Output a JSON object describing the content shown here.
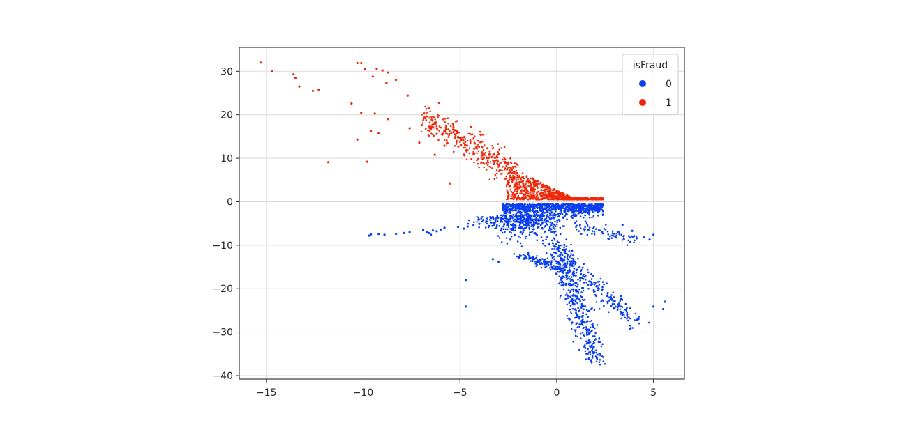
{
  "chart_data": {
    "type": "scatter",
    "title": "",
    "xlabel": "",
    "ylabel": "",
    "xlim": [
      -16.4,
      6.6
    ],
    "ylim": [
      -40.8,
      35.5
    ],
    "xticks": [
      -15,
      -10,
      -5,
      0,
      5
    ],
    "yticks": [
      -40,
      -30,
      -20,
      -10,
      0,
      10,
      20,
      30
    ],
    "grid": true,
    "legend": {
      "title": "isFraud",
      "position": "top-right",
      "entries": [
        {
          "label": "0",
          "color": "#0a3ff0"
        },
        {
          "label": "1",
          "color": "#f0280a"
        }
      ]
    },
    "series": [
      {
        "name": "0",
        "color": "#0a3ff0",
        "points": [
          [
            -9.7,
            -7.8
          ],
          [
            -9.6,
            -7.5
          ],
          [
            -9.2,
            -7.4
          ],
          [
            -8.9,
            -7.6
          ],
          [
            -8.3,
            -7.4
          ],
          [
            -7.9,
            -7.2
          ],
          [
            -7.6,
            -7.0
          ],
          [
            -6.9,
            -6.5
          ],
          [
            -6.7,
            -6.9
          ],
          [
            -6.6,
            -7.2
          ],
          [
            -6.5,
            -7.6
          ],
          [
            -6.4,
            -6.6
          ],
          [
            -6.2,
            -6.8
          ],
          [
            -6.0,
            -6.4
          ],
          [
            -5.8,
            -6.0
          ],
          [
            -5.1,
            -5.8
          ],
          [
            -4.8,
            -6.2
          ],
          [
            -4.6,
            -5.7
          ],
          [
            -4.3,
            -5.4
          ],
          [
            -4.0,
            -5.1
          ],
          [
            -3.8,
            -4.2
          ],
          [
            -3.5,
            -5.6
          ],
          [
            -3.2,
            -4.8
          ],
          [
            -2.9,
            -3.9
          ],
          [
            -3.3,
            -13.2
          ],
          [
            -3.0,
            -13.8
          ],
          [
            -4.7,
            -18.0
          ],
          [
            -4.7,
            -24.1
          ],
          [
            4.0,
            -7.9
          ],
          [
            4.5,
            -8.2
          ],
          [
            4.8,
            -8.7
          ],
          [
            5.0,
            -7.6
          ],
          [
            3.9,
            -6.7
          ],
          [
            3.4,
            -5.3
          ],
          [
            3.8,
            -29.3
          ],
          [
            5.0,
            -24.1
          ],
          [
            5.5,
            -24.7
          ],
          [
            5.6,
            -23.0
          ]
        ]
      },
      {
        "name": "1",
        "color": "#f0280a",
        "points": [
          [
            -15.3,
            32.0
          ],
          [
            -14.7,
            30.1
          ],
          [
            -13.6,
            29.3
          ],
          [
            -13.5,
            28.5
          ],
          [
            -13.3,
            26.5
          ],
          [
            -12.6,
            25.5
          ],
          [
            -12.3,
            25.8
          ],
          [
            -11.8,
            9.1
          ],
          [
            -10.3,
            31.9
          ],
          [
            -10.1,
            31.9
          ],
          [
            -9.9,
            30.5
          ],
          [
            -9.5,
            28.8
          ],
          [
            -9.3,
            30.6
          ],
          [
            -9.0,
            30.2
          ],
          [
            -8.8,
            27.3
          ],
          [
            -8.7,
            29.7
          ],
          [
            -10.6,
            22.6
          ],
          [
            -10.1,
            20.5
          ],
          [
            -10.3,
            14.3
          ],
          [
            -9.8,
            9.2
          ],
          [
            -9.4,
            20.3
          ],
          [
            -9.6,
            16.3
          ],
          [
            -9.2,
            15.7
          ],
          [
            -8.7,
            19.0
          ],
          [
            -8.3,
            28.0
          ],
          [
            -7.7,
            24.4
          ],
          [
            -7.6,
            16.9
          ],
          [
            -7.1,
            13.6
          ],
          [
            -6.6,
            21.5
          ],
          [
            -6.2,
            15.6
          ],
          [
            -5.5,
            4.2
          ],
          [
            -6.3,
            10.8
          ],
          [
            -5.8,
            12.9
          ]
        ]
      }
    ]
  }
}
